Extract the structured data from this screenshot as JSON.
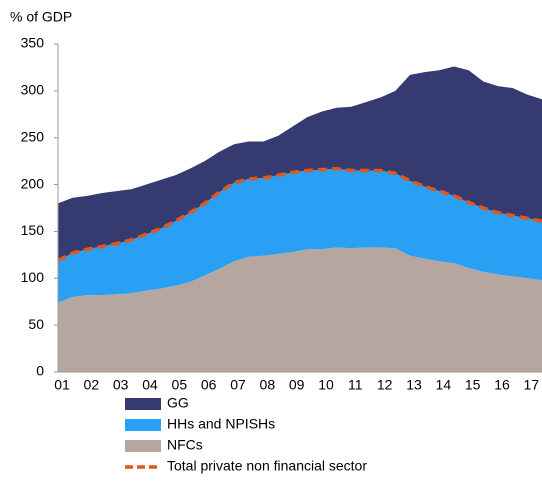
{
  "chart_data": {
    "type": "stacked-area",
    "y_label": "% of GDP",
    "categories": [
      "01",
      null,
      "02",
      null,
      "03",
      null,
      "04",
      null,
      "05",
      null,
      "06",
      null,
      "07",
      null,
      "08",
      null,
      "09",
      null,
      "10",
      null,
      "11",
      null,
      "12",
      null,
      "13",
      null,
      "14",
      null,
      "15",
      null,
      "16",
      null,
      "17",
      null
    ],
    "series": [
      {
        "name": "GG",
        "type": "area",
        "color": "#353a70",
        "values": [
          61,
          59,
          57,
          57,
          56,
          54,
          53,
          52,
          49,
          47,
          45,
          43,
          41,
          40,
          39,
          42,
          49,
          57,
          62,
          65,
          68,
          73,
          78,
          88,
          113,
          122,
          129,
          138,
          141,
          135,
          135,
          136,
          132,
          130
        ]
      },
      {
        "name": "HHs and NPISHs",
        "type": "area",
        "color": "#2aa0f5",
        "values": [
          45,
          47,
          49,
          52,
          54,
          57,
          60,
          64,
          69,
          74,
          77,
          82,
          84,
          83,
          83,
          84,
          85,
          84,
          85,
          84,
          83,
          82,
          82,
          80,
          80,
          77,
          75,
          72,
          70,
          68,
          66,
          65,
          64,
          63
        ]
      },
      {
        "name": "NFCs",
        "type": "area",
        "color": "#b5a7a0",
        "values": [
          74,
          80,
          82,
          82,
          83,
          84,
          87,
          89,
          92,
          96,
          103,
          110,
          118,
          123,
          124,
          126,
          128,
          131,
          131,
          133,
          132,
          133,
          133,
          132,
          124,
          121,
          118,
          116,
          111,
          107,
          104,
          102,
          100,
          98
        ]
      },
      {
        "name": "Total private non financial sector",
        "type": "line",
        "dashed": true,
        "color": "#e0561b",
        "values": [
          119,
          127,
          131,
          134,
          137,
          141,
          147,
          153,
          161,
          170,
          180,
          192,
          202,
          206,
          207,
          210,
          213,
          215,
          216,
          217,
          215,
          215,
          215,
          212,
          204,
          198,
          193,
          188,
          181,
          175,
          170,
          167,
          164,
          161
        ]
      }
    ],
    "ylim": [
      0,
      350
    ],
    "yticks": [
      0,
      50,
      100,
      150,
      200,
      250,
      300,
      350
    ],
    "grid": false,
    "legend": "bottom"
  }
}
